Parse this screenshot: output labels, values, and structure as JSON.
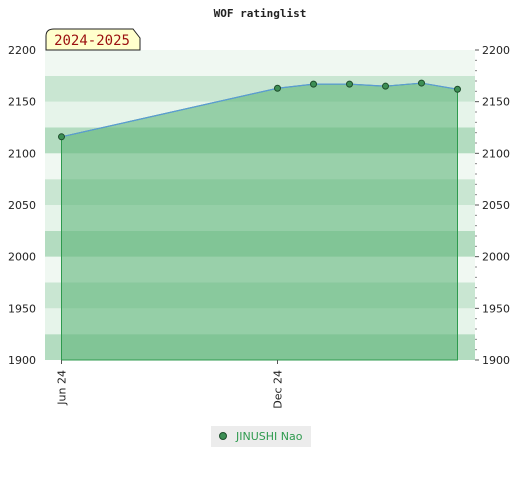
{
  "chart_data": {
    "type": "area",
    "title": "WOF ratinglist",
    "season_label": "2024-2025",
    "x_tick_labels": [
      "Jun 24",
      "Dec 24"
    ],
    "y_ticks": [
      1900,
      1950,
      2000,
      2050,
      2100,
      2150,
      2200
    ],
    "ylim": [
      1900,
      2200
    ],
    "grid": true,
    "legend_position": "bottom-center",
    "series": [
      {
        "name": "JINUSHI Nao",
        "points": [
          {
            "x": "2024-06",
            "y": 2116
          },
          {
            "x": "2024-12",
            "y": 2163
          },
          {
            "x": "2025-01",
            "y": 2167
          },
          {
            "x": "2025-02",
            "y": 2167
          },
          {
            "x": "2025-03",
            "y": 2165
          },
          {
            "x": "2025-04",
            "y": 2168
          },
          {
            "x": "2025-05",
            "y": 2162
          }
        ]
      }
    ],
    "colors": {
      "fill": "#7cc493",
      "line": "#5b9bd5",
      "marker": "#3d8f55",
      "band_dark": "#b3dcc0",
      "band_light": "#f0f8f2"
    }
  }
}
